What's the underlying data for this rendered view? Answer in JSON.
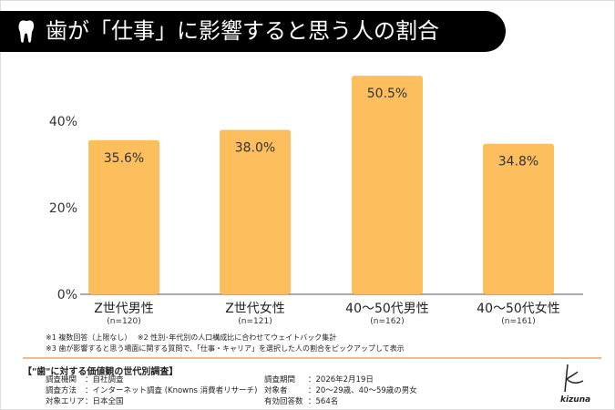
{
  "title": "歯が「仕事」に影響すると思う人の割合",
  "chart_data": {
    "type": "bar",
    "categories": [
      "Z世代男性",
      "Z世代女性",
      "40〜50代男性",
      "40〜50代女性"
    ],
    "sublabels": [
      "(n=120)",
      "(n=121)",
      "(n=162)",
      "(n=161)"
    ],
    "values": [
      35.6,
      38.0,
      50.5,
      34.8
    ],
    "data_labels": [
      "35.6%",
      "38.0%",
      "50.5%",
      "34.8%"
    ],
    "yticks": [
      "0%",
      "20%",
      "40%"
    ],
    "ytick_values": [
      0,
      20,
      40
    ],
    "ylim": [
      0,
      55
    ],
    "grid": false,
    "bar_color": "#FDBE5E"
  },
  "notes": [
    "※1 複数回答（上限なし）　 ※2 性別･年代別の人口構成比に合わせてウェイトバック集計",
    "※3 歯が影響すると思う場面に関する質問で、「仕事・キャリア」を選択した人の割合をピックアップして表示"
  ],
  "survey": {
    "title": "【\"歯\"に対する価値観の世代別調査】",
    "rows": [
      {
        "label": "調査機関",
        "value": "：自社調査"
      },
      {
        "label": "調査方法",
        "value": "：インターネット調査 (Knowns 消費者リサーチ)"
      },
      {
        "label": "対象エリア",
        "value": "：日本全国"
      },
      {
        "label": "調査期間",
        "value": "：2026年2月19日"
      },
      {
        "label": "対象者",
        "value": "：20〜29歳、40〜59歳の男女"
      },
      {
        "label": "有効回答数",
        "value": "：564名"
      }
    ]
  },
  "logo": "kizuna"
}
